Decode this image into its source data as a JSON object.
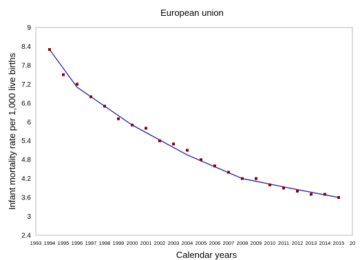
{
  "chart_data": {
    "type": "scatter",
    "title": "European union",
    "xlabel": "Calendar years",
    "ylabel": "Infant mortality rate per 1,000 live births",
    "xlim": [
      1993,
      2016
    ],
    "ylim": [
      2.4,
      9
    ],
    "grid": false,
    "y_ticks": [
      "2.4",
      "3",
      "3.6",
      "4.2",
      "4.8",
      "5.4",
      "6",
      "6.6",
      "7.2",
      "7.8",
      "8.4",
      "9"
    ],
    "x_ticks": [
      "1993",
      "1994",
      "1995",
      "1996",
      "1997",
      "1998",
      "1999",
      "2000",
      "2001",
      "2002",
      "2003",
      "2004",
      "2005",
      "2006",
      "2007",
      "2008",
      "2009",
      "2010",
      "2011",
      "2012",
      "2013",
      "2014",
      "2015",
      "20"
    ],
    "series": [
      {
        "kind": "points",
        "color": "#8b0000",
        "x": [
          1994,
          1995,
          1996,
          1997,
          1998,
          1999,
          2000,
          2001,
          2002,
          2003,
          2004,
          2005,
          2006,
          2007,
          2008,
          2009,
          2010,
          2011,
          2012,
          2013,
          2014,
          2015
        ],
        "y": [
          8.3,
          7.5,
          7.2,
          6.8,
          6.5,
          6.1,
          5.9,
          5.8,
          5.4,
          5.3,
          5.1,
          4.8,
          4.6,
          4.4,
          4.2,
          4.2,
          4.0,
          3.9,
          3.8,
          3.7,
          3.7,
          3.6
        ]
      },
      {
        "kind": "fit-line",
        "color": "#2b2bb0",
        "x": [
          1994,
          1996,
          2000,
          2004,
          2008,
          2012,
          2015
        ],
        "y": [
          8.3,
          7.1,
          5.9,
          4.95,
          4.2,
          3.85,
          3.6
        ]
      }
    ]
  }
}
